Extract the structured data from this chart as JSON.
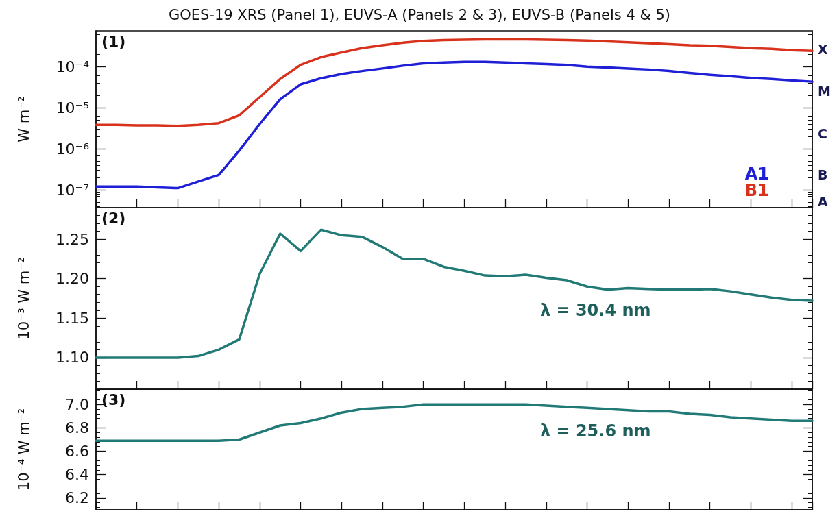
{
  "chart_data": [
    {
      "type": "line",
      "title": "GOES-19 XRS (Panel 1), EUVS-A (Panels 2 & 3), EUVS-B (Panels 4 & 5)",
      "ylabel": "W m⁻²",
      "categories": [
        null,
        null,
        null,
        null,
        null,
        null,
        null,
        null,
        null,
        null,
        null,
        null,
        null,
        null,
        null,
        null,
        null,
        null,
        null,
        null,
        null,
        null,
        null,
        null,
        null,
        null,
        null,
        null,
        null,
        null,
        null,
        null,
        null,
        null,
        null,
        null
      ],
      "series": [
        {
          "name": "A1",
          "color": "#1f1fd6",
          "values": [
            1.2e-07,
            1.2e-07,
            1.2e-07,
            1.15e-07,
            1.1e-07,
            1.6e-07,
            2.3e-07,
            9e-07,
            4e-06,
            1.6e-05,
            3.7e-05,
            5.2e-05,
            6.6e-05,
            7.8e-05,
            9e-05,
            0.000105,
            0.00012,
            0.000125,
            0.00013,
            0.00013,
            0.000125,
            0.00012,
            0.000115,
            0.00011,
            0.0001,
            9.5e-05,
            9e-05,
            8.5e-05,
            7.8e-05,
            7e-05,
            6.3e-05,
            5.8e-05,
            5.3e-05,
            5e-05,
            4.6e-05,
            4.3e-05
          ]
        },
        {
          "name": "B1",
          "color": "#d8311c",
          "values": [
            3.8e-06,
            3.8e-06,
            3.7e-06,
            3.7e-06,
            3.6e-06,
            3.8e-06,
            4.2e-06,
            6.5e-06,
            1.8e-05,
            5e-05,
            0.00011,
            0.00017,
            0.00022,
            0.00028,
            0.00033,
            0.00038,
            0.00042,
            0.00044,
            0.00045,
            0.00046,
            0.00046,
            0.00046,
            0.00045,
            0.00044,
            0.00043,
            0.00041,
            0.00039,
            0.00037,
            0.00035,
            0.00033,
            0.00032,
            0.0003,
            0.00028,
            0.00027,
            0.00025,
            0.00024
          ]
        }
      ],
      "log": "y",
      "ylim": [
        3.7e-08,
        0.00074
      ],
      "yticks": [
        {
          "value": 1e-07,
          "label": "10⁻⁷"
        },
        {
          "value": 1e-06,
          "label": "10⁻⁶"
        },
        {
          "value": 1e-05,
          "label": "10⁻⁵"
        },
        {
          "value": 0.0001,
          "label": "10⁻⁴"
        }
      ],
      "annotations": [
        "(1)",
        "X",
        "M",
        "C",
        "B",
        "A"
      ],
      "legend": "bottom right",
      "tick_labels": "y",
      "grid": false,
      "marker": "none",
      "line_style": "solid"
    },
    {
      "type": "line",
      "ylabel": "10⁻³ W m⁻²",
      "categories": [
        null,
        null,
        null,
        null,
        null,
        null,
        null,
        null,
        null,
        null,
        null,
        null,
        null,
        null,
        null,
        null,
        null,
        null,
        null,
        null,
        null,
        null,
        null,
        null,
        null,
        null,
        null,
        null,
        null,
        null,
        null,
        null,
        null,
        null,
        null,
        null
      ],
      "series": [
        {
          "color": "#217a76",
          "values": [
            1.1,
            1.1,
            1.1,
            1.1,
            1.1,
            1.102,
            1.11,
            1.123,
            1.206,
            1.257,
            1.235,
            1.262,
            1.255,
            1.253,
            1.24,
            1.225,
            1.225,
            1.215,
            1.21,
            1.204,
            1.203,
            1.205,
            1.201,
            1.198,
            1.19,
            1.186,
            1.188,
            1.187,
            1.186,
            1.186,
            1.187,
            1.184,
            1.18,
            1.176,
            1.173,
            1.172
          ]
        }
      ],
      "ylim": [
        1.06,
        1.29
      ],
      "yticks": [
        {
          "value": 1.1,
          "label": "1.10"
        },
        1.15,
        {
          "value": 1.2,
          "label": "1.20"
        },
        1.25
      ],
      "annotations": [
        "(2)",
        "λ = 30.4 nm"
      ],
      "legend": false,
      "tick_labels": "y",
      "grid": false,
      "marker": "none",
      "line_style": "solid"
    },
    {
      "type": "line",
      "ylabel": "10⁻⁴ W m⁻²",
      "categories": [
        null,
        null,
        null,
        null,
        null,
        null,
        null,
        null,
        null,
        null,
        null,
        null,
        null,
        null,
        null,
        null,
        null,
        null,
        null,
        null,
        null,
        null,
        null,
        null,
        null,
        null,
        null,
        null,
        null,
        null,
        null,
        null,
        null,
        null,
        null,
        null
      ],
      "series": [
        {
          "color": "#217a76",
          "values": [
            6.69,
            6.69,
            6.69,
            6.69,
            6.69,
            6.69,
            6.69,
            6.7,
            6.76,
            6.82,
            6.84,
            6.88,
            6.93,
            6.96,
            6.97,
            6.98,
            7.0,
            7.0,
            7.0,
            7.0,
            7.0,
            7.0,
            6.99,
            6.98,
            6.97,
            6.96,
            6.95,
            6.94,
            6.94,
            6.92,
            6.91,
            6.89,
            6.88,
            6.87,
            6.86,
            6.86
          ]
        }
      ],
      "ylim": [
        6.1,
        7.13
      ],
      "yticks": [
        6.2,
        6.4,
        6.6,
        6.8,
        {
          "value": 7.0,
          "label": "7.0"
        }
      ],
      "annotations": [
        "(3)",
        "λ = 25.6 nm"
      ],
      "legend": false,
      "tick_labels": "y",
      "grid": false,
      "marker": "none",
      "line_style": "solid"
    }
  ]
}
